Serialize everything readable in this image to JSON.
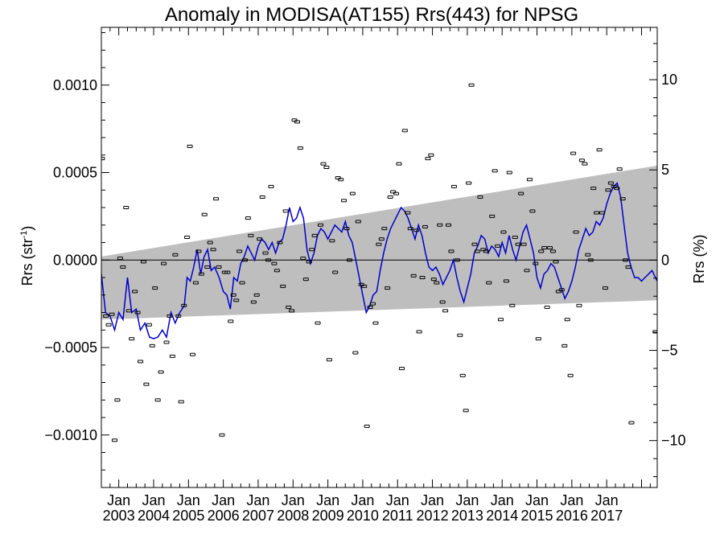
{
  "chart_data": {
    "type": "scatter",
    "title": "Anomaly in MODISA(AT155) Rrs(443) for NPSG",
    "ylabel": "Rrs (str",
    "ylabel_sup": "-1",
    "ylabel_close": ")",
    "y2label": "Rrs (%)",
    "ylim": [
      -0.0013,
      0.00133
    ],
    "y2lim": [
      -12.6,
      12.9
    ],
    "xlim": [
      2002.5,
      2018.45
    ],
    "yticks": [
      {
        "value": 0.001,
        "label": "0.0010"
      },
      {
        "value": 0.0005,
        "label": "0.0005"
      },
      {
        "value": 0.0,
        "label": "0.0000"
      },
      {
        "value": -0.0005,
        "label": "−0.0005"
      },
      {
        "value": -0.001,
        "label": "−0.0010"
      }
    ],
    "y2ticks": [
      {
        "value": 10,
        "label": "10"
      },
      {
        "value": 5,
        "label": "5"
      },
      {
        "value": 0,
        "label": "0"
      },
      {
        "value": -5,
        "label": "−5"
      },
      {
        "value": -10,
        "label": "−10"
      }
    ],
    "xticks": [
      {
        "value": 2003,
        "month": "Jan",
        "year": "2003"
      },
      {
        "value": 2004,
        "month": "Jan",
        "year": "2004"
      },
      {
        "value": 2005,
        "month": "Jan",
        "year": "2005"
      },
      {
        "value": 2006,
        "month": "Jan",
        "year": "2006"
      },
      {
        "value": 2007,
        "month": "Jan",
        "year": "2007"
      },
      {
        "value": 2008,
        "month": "Jan",
        "year": "2008"
      },
      {
        "value": 2009,
        "month": "Jan",
        "year": "2009"
      },
      {
        "value": 2010,
        "month": "Jan",
        "year": "2010"
      },
      {
        "value": 2011,
        "month": "Jan",
        "year": "2011"
      },
      {
        "value": 2012,
        "month": "Jan",
        "year": "2012"
      },
      {
        "value": 2013,
        "month": "Jan",
        "year": "2013"
      },
      {
        "value": 2014,
        "month": "Jan",
        "year": "2014"
      },
      {
        "value": 2015,
        "month": "Jan",
        "year": "2015"
      },
      {
        "value": 2016,
        "month": "Jan",
        "year": "2016"
      },
      {
        "value": 2017,
        "month": "Jan",
        "year": "2017"
      }
    ],
    "band": {
      "upper": [
        [
          2002.5,
          2e-05
        ],
        [
          2018.45,
          0.00054
        ]
      ],
      "lower": [
        [
          2002.5,
          -0.00034
        ],
        [
          2018.45,
          -0.00023
        ]
      ],
      "color": "#bebebe"
    },
    "zero_line": 0.0,
    "line_color": "#0000cc",
    "point_color": "#000000",
    "points": [
      [
        2002.52,
        0.00058
      ],
      [
        2002.63,
        -0.00032
      ],
      [
        2002.71,
        -0.00037
      ],
      [
        2002.8,
        -0.00031
      ],
      [
        2002.88,
        -0.00103
      ],
      [
        2002.96,
        -0.0008
      ],
      [
        2003.04,
        1e-05
      ],
      [
        2003.12,
        -4e-05
      ],
      [
        2003.21,
        0.0003
      ],
      [
        2003.29,
        -0.00029
      ],
      [
        2003.37,
        -0.00045
      ],
      [
        2003.46,
        -0.00018
      ],
      [
        2003.54,
        -0.0003
      ],
      [
        2003.62,
        -0.00058
      ],
      [
        2003.71,
        -1e-05
      ],
      [
        2003.79,
        -0.00071
      ],
      [
        2003.87,
        -0.00037
      ],
      [
        2003.96,
        -0.00049
      ],
      [
        2004.04,
        -0.00016
      ],
      [
        2004.12,
        -0.0008
      ],
      [
        2004.21,
        -0.00064
      ],
      [
        2004.29,
        -2e-05
      ],
      [
        2004.37,
        -0.00047
      ],
      [
        2004.46,
        -0.00032
      ],
      [
        2004.54,
        -0.00055
      ],
      [
        2004.62,
        3e-05
      ],
      [
        2004.71,
        -0.00032
      ],
      [
        2004.79,
        -0.00081
      ],
      [
        2004.87,
        -0.00026
      ],
      [
        2004.96,
        0.00013
      ],
      [
        2005.04,
        0.00065
      ],
      [
        2005.12,
        -0.00054
      ],
      [
        2005.21,
        -0.00013
      ],
      [
        2005.29,
        5e-05
      ],
      [
        2005.37,
        -8e-05
      ],
      [
        2005.46,
        0.00026
      ],
      [
        2005.54,
        -4e-05
      ],
      [
        2005.62,
        0.0001
      ],
      [
        2005.71,
        6e-05
      ],
      [
        2005.79,
        0.00035
      ],
      [
        2005.87,
        -4e-05
      ],
      [
        2005.96,
        -0.001
      ],
      [
        2006.04,
        -7e-05
      ],
      [
        2006.12,
        -7e-05
      ],
      [
        2006.21,
        -0.00035
      ],
      [
        2006.29,
        -0.0002
      ],
      [
        2006.37,
        -0.00023
      ],
      [
        2006.46,
        5e-05
      ],
      [
        2006.54,
        -0.00013
      ],
      [
        2006.62,
        -0.0
      ],
      [
        2006.71,
        0.00024
      ],
      [
        2006.79,
        0.00014
      ],
      [
        2006.87,
        -0.00024
      ],
      [
        2006.96,
        -0.0002
      ],
      [
        2007.04,
        0.00012
      ],
      [
        2007.12,
        0.00036
      ],
      [
        2007.21,
        4e-05
      ],
      [
        2007.29,
        0.0
      ],
      [
        2007.37,
        0.00042
      ],
      [
        2007.46,
        -2e-05
      ],
      [
        2007.54,
        -6e-05
      ],
      [
        2007.62,
        0.0001
      ],
      [
        2007.71,
        -0.00015
      ],
      [
        2007.79,
        0.00028
      ],
      [
        2007.87,
        -0.00027
      ],
      [
        2007.96,
        -0.00029
      ],
      [
        2008.04,
        0.0008
      ],
      [
        2008.12,
        0.00079
      ],
      [
        2008.21,
        0.00064
      ],
      [
        2008.29,
        1e-05
      ],
      [
        2008.37,
        -0.00011
      ],
      [
        2008.46,
        -1e-05
      ],
      [
        2008.54,
        6e-05
      ],
      [
        2008.62,
        0.00014
      ],
      [
        2008.71,
        -0.00036
      ],
      [
        2008.79,
        0.0002
      ],
      [
        2008.87,
        0.00055
      ],
      [
        2008.96,
        0.00053
      ],
      [
        2009.04,
        -0.00057
      ],
      [
        2009.12,
        0.00011
      ],
      [
        2009.21,
        -7e-05
      ],
      [
        2009.29,
        0.00047
      ],
      [
        2009.37,
        0.00046
      ],
      [
        2009.46,
        0.00034
      ],
      [
        2009.54,
        0.00018
      ],
      [
        2009.62,
        0.0
      ],
      [
        2009.71,
        0.00038
      ],
      [
        2009.79,
        -0.00053
      ],
      [
        2009.87,
        0.00022
      ],
      [
        2009.96,
        -0.00014
      ],
      [
        2010.04,
        -0.00015
      ],
      [
        2010.12,
        -0.00095
      ],
      [
        2010.21,
        -0.00027
      ],
      [
        2010.29,
        -0.00025
      ],
      [
        2010.37,
        -0.00036
      ],
      [
        2010.46,
        9e-05
      ],
      [
        2010.54,
        0.00012
      ],
      [
        2010.62,
        0.00018
      ],
      [
        2010.71,
        -0.00016
      ],
      [
        2010.79,
        0.00036
      ],
      [
        2010.87,
        0.00039
      ],
      [
        2010.96,
        0.00038
      ],
      [
        2011.04,
        0.00055
      ],
      [
        2011.12,
        -0.00062
      ],
      [
        2011.21,
        0.00074
      ],
      [
        2011.29,
        0.00027
      ],
      [
        2011.37,
        0.00018
      ],
      [
        2011.46,
        -9e-05
      ],
      [
        2011.54,
        0.00017
      ],
      [
        2011.62,
        -0.00041
      ],
      [
        2011.71,
        -0.0001
      ],
      [
        2011.79,
        0.00019
      ],
      [
        2011.87,
        0.00058
      ],
      [
        2011.96,
        0.0006
      ],
      [
        2012.04,
        -0.00011
      ],
      [
        2012.12,
        -0.00013
      ],
      [
        2012.21,
        0.0002
      ],
      [
        2012.29,
        -0.00024
      ],
      [
        2012.37,
        -0.00029
      ],
      [
        2012.46,
        0.0002
      ],
      [
        2012.54,
        5e-05
      ],
      [
        2012.62,
        0.00042
      ],
      [
        2012.71,
        0.0
      ],
      [
        2012.79,
        -0.00043
      ],
      [
        2012.87,
        -0.00066
      ],
      [
        2012.96,
        -0.00086
      ],
      [
        2013.04,
        0.00044
      ],
      [
        2013.12,
        0.001
      ],
      [
        2013.21,
        9e-05
      ],
      [
        2013.29,
        5e-05
      ],
      [
        2013.37,
        0.00036
      ],
      [
        2013.46,
        6e-05
      ],
      [
        2013.54,
        5e-05
      ],
      [
        2013.62,
        -0.00013
      ],
      [
        2013.71,
        0.00025
      ],
      [
        2013.79,
        0.00051
      ],
      [
        2013.87,
        8e-05
      ],
      [
        2013.96,
        -0.00034
      ],
      [
        2014.04,
        0.00016
      ],
      [
        2014.12,
        -0.00012
      ],
      [
        2014.21,
        0.0005
      ],
      [
        2014.29,
        -0.00026
      ],
      [
        2014.37,
        0.00013
      ],
      [
        2014.46,
        9e-05
      ],
      [
        2014.54,
        0.00038
      ],
      [
        2014.62,
        9e-05
      ],
      [
        2014.71,
        -6e-05
      ],
      [
        2014.79,
        0.00046
      ],
      [
        2014.87,
        0.00028
      ],
      [
        2014.96,
        -2e-05
      ],
      [
        2015.04,
        -0.00045
      ],
      [
        2015.12,
        5e-05
      ],
      [
        2015.21,
        7e-05
      ],
      [
        2015.29,
        -0.00027
      ],
      [
        2015.37,
        7e-05
      ],
      [
        2015.46,
        5e-05
      ],
      [
        2015.54,
        -1e-05
      ],
      [
        2015.62,
        -0.00018
      ],
      [
        2015.71,
        -0.00017
      ],
      [
        2015.79,
        -0.00049
      ],
      [
        2015.87,
        -0.00034
      ],
      [
        2015.96,
        -0.00066
      ],
      [
        2016.04,
        0.00061
      ],
      [
        2016.12,
        0.00016
      ],
      [
        2016.21,
        -0.00026
      ],
      [
        2016.29,
        0.00057
      ],
      [
        2016.37,
        0.00055
      ],
      [
        2016.46,
        3e-05
      ],
      [
        2016.54,
        0.0
      ],
      [
        2016.62,
        0.00041
      ],
      [
        2016.71,
        0.00027
      ],
      [
        2016.79,
        0.00063
      ],
      [
        2016.87,
        0.00027
      ],
      [
        2016.96,
        -0.00016
      ],
      [
        2017.04,
        0.0004
      ],
      [
        2017.12,
        0.00044
      ],
      [
        2017.21,
        0.00042
      ],
      [
        2017.29,
        0.00041
      ],
      [
        2017.37,
        0.00052
      ],
      [
        2017.46,
        0.00035
      ],
      [
        2017.54,
        0.0
      ],
      [
        2017.62,
        -4e-05
      ],
      [
        2017.71,
        -0.00093
      ],
      [
        2018.4,
        -0.00041
      ]
    ],
    "line": [
      [
        2002.5,
        -8e-05
      ],
      [
        2002.62,
        -0.0003
      ],
      [
        2002.75,
        -0.00032
      ],
      [
        2002.88,
        -0.0004
      ],
      [
        2003.0,
        -0.0003
      ],
      [
        2003.12,
        -0.00034
      ],
      [
        2003.25,
        -0.0001
      ],
      [
        2003.37,
        -0.0003
      ],
      [
        2003.5,
        -0.00028
      ],
      [
        2003.62,
        -0.0004
      ],
      [
        2003.75,
        -0.00036
      ],
      [
        2003.88,
        -0.00044
      ],
      [
        2004.0,
        -0.00045
      ],
      [
        2004.12,
        -0.00044
      ],
      [
        2004.25,
        -0.0004
      ],
      [
        2004.37,
        -0.00044
      ],
      [
        2004.5,
        -0.0003
      ],
      [
        2004.62,
        -0.00036
      ],
      [
        2004.75,
        -0.0003
      ],
      [
        2004.88,
        -0.00026
      ],
      [
        2004.96,
        -0.0001
      ],
      [
        2005.05,
        -0.00012
      ],
      [
        2005.15,
        -4e-05
      ],
      [
        2005.25,
        6e-05
      ],
      [
        2005.35,
        -8e-05
      ],
      [
        2005.45,
        2e-05
      ],
      [
        2005.55,
        6e-05
      ],
      [
        2005.65,
        -6e-05
      ],
      [
        2005.75,
        -4e-05
      ],
      [
        2005.88,
        -0.0001
      ],
      [
        2006.0,
        -0.00018
      ],
      [
        2006.1,
        -0.0002
      ],
      [
        2006.2,
        -0.00028
      ],
      [
        2006.3,
        -0.0001
      ],
      [
        2006.4,
        -0.00012
      ],
      [
        2006.5,
        -2e-05
      ],
      [
        2006.6,
        2e-05
      ],
      [
        2006.7,
        8e-05
      ],
      [
        2006.8,
        4e-05
      ],
      [
        2006.9,
        0.0
      ],
      [
        2007.0,
        8e-05
      ],
      [
        2007.1,
        0.00012
      ],
      [
        2007.2,
        0.0001
      ],
      [
        2007.3,
        6e-05
      ],
      [
        2007.4,
        0.0001
      ],
      [
        2007.5,
        4e-05
      ],
      [
        2007.6,
        0.0001
      ],
      [
        2007.7,
        0.00012
      ],
      [
        2007.8,
        0.0002
      ],
      [
        2007.9,
        0.0003
      ],
      [
        2008.0,
        0.00022
      ],
      [
        2008.1,
        0.00024
      ],
      [
        2008.2,
        0.0003
      ],
      [
        2008.3,
        0.00024
      ],
      [
        2008.4,
        6e-05
      ],
      [
        2008.5,
        -2e-05
      ],
      [
        2008.6,
        4e-05
      ],
      [
        2008.7,
        0.00014
      ],
      [
        2008.8,
        0.00018
      ],
      [
        2008.9,
        0.00016
      ],
      [
        2009.0,
        0.00012
      ],
      [
        2009.1,
        0.00016
      ],
      [
        2009.2,
        0.0002
      ],
      [
        2009.3,
        0.00018
      ],
      [
        2009.4,
        0.00016
      ],
      [
        2009.5,
        0.00022
      ],
      [
        2009.6,
        0.00014
      ],
      [
        2009.7,
        0.0001
      ],
      [
        2009.8,
        0.0
      ],
      [
        2009.9,
        -0.0001
      ],
      [
        2010.0,
        -0.0002
      ],
      [
        2010.1,
        -0.0003
      ],
      [
        2010.2,
        -0.00026
      ],
      [
        2010.3,
        -0.0002
      ],
      [
        2010.4,
        -0.00018
      ],
      [
        2010.5,
        -6e-05
      ],
      [
        2010.6,
        4e-05
      ],
      [
        2010.7,
        0.00012
      ],
      [
        2010.8,
        0.00018
      ],
      [
        2010.9,
        0.00022
      ],
      [
        2011.0,
        0.00026
      ],
      [
        2011.1,
        0.0003
      ],
      [
        2011.2,
        0.00028
      ],
      [
        2011.3,
        0.00024
      ],
      [
        2011.4,
        0.00018
      ],
      [
        2011.5,
        0.00012
      ],
      [
        2011.6,
        0.0002
      ],
      [
        2011.7,
        0.00014
      ],
      [
        2011.8,
        4e-05
      ],
      [
        2011.9,
        -4e-05
      ],
      [
        2012.0,
        -6e-05
      ],
      [
        2012.1,
        -4e-05
      ],
      [
        2012.2,
        -8e-05
      ],
      [
        2012.3,
        -0.00014
      ],
      [
        2012.4,
        -0.0001
      ],
      [
        2012.5,
        -6e-05
      ],
      [
        2012.6,
        0.0
      ],
      [
        2012.7,
        -0.0001
      ],
      [
        2012.8,
        -0.00018
      ],
      [
        2012.9,
        -0.00024
      ],
      [
        2013.0,
        -0.00016
      ],
      [
        2013.1,
        -8e-05
      ],
      [
        2013.2,
        4e-05
      ],
      [
        2013.3,
        8e-05
      ],
      [
        2013.4,
        0.00014
      ],
      [
        2013.5,
        0.00012
      ],
      [
        2013.6,
        4e-05
      ],
      [
        2013.7,
        8e-05
      ],
      [
        2013.8,
        6e-05
      ],
      [
        2013.9,
        2e-05
      ],
      [
        2014.0,
        0.0001
      ],
      [
        2014.1,
        4e-05
      ],
      [
        2014.2,
        0.00014
      ],
      [
        2014.3,
        6e-05
      ],
      [
        2014.4,
        0.0
      ],
      [
        2014.5,
        8e-05
      ],
      [
        2014.6,
        0.00016
      ],
      [
        2014.7,
        0.0002
      ],
      [
        2014.8,
        0.00012
      ],
      [
        2014.9,
        4e-05
      ],
      [
        2015.0,
        -0.0001
      ],
      [
        2015.1,
        -0.00016
      ],
      [
        2015.2,
        -8e-05
      ],
      [
        2015.3,
        -6e-05
      ],
      [
        2015.4,
        -2e-05
      ],
      [
        2015.5,
        -4e-05
      ],
      [
        2015.6,
        -0.0001
      ],
      [
        2015.7,
        -0.00016
      ],
      [
        2015.8,
        -0.00022
      ],
      [
        2015.9,
        -0.00018
      ],
      [
        2016.0,
        -0.00012
      ],
      [
        2016.1,
        -4e-05
      ],
      [
        2016.2,
        6e-05
      ],
      [
        2016.3,
        0.00012
      ],
      [
        2016.4,
        0.00018
      ],
      [
        2016.5,
        0.00014
      ],
      [
        2016.6,
        0.00016
      ],
      [
        2016.7,
        0.00022
      ],
      [
        2016.8,
        0.0002
      ],
      [
        2016.9,
        0.00024
      ],
      [
        2017.0,
        0.00032
      ],
      [
        2017.1,
        0.00038
      ],
      [
        2017.2,
        0.00042
      ],
      [
        2017.3,
        0.00044
      ],
      [
        2017.4,
        0.00036
      ],
      [
        2017.5,
        0.0002
      ],
      [
        2017.6,
        4e-05
      ],
      [
        2017.7,
        -4e-05
      ],
      [
        2017.8,
        -0.0001
      ],
      [
        2017.9,
        -0.0001
      ],
      [
        2018.0,
        -0.00012
      ],
      [
        2018.1,
        -0.0001
      ],
      [
        2018.2,
        -8e-05
      ],
      [
        2018.3,
        -6e-05
      ],
      [
        2018.45,
        -0.00012
      ]
    ]
  }
}
